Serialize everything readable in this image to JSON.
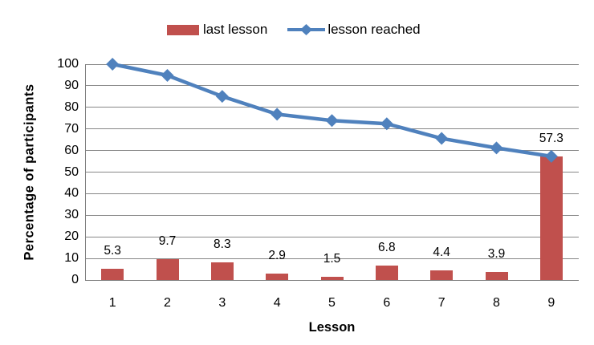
{
  "chart_data": {
    "type": "combo",
    "title": "",
    "xlabel": "Lesson",
    "ylabel": "Percentage of participants",
    "categories": [
      "1",
      "2",
      "3",
      "4",
      "5",
      "6",
      "7",
      "8",
      "9"
    ],
    "ylim": [
      0,
      100
    ],
    "yticks": [
      0,
      10,
      20,
      30,
      40,
      50,
      60,
      70,
      80,
      90,
      100
    ],
    "grid": true,
    "legend_position": "top",
    "axis_color": "#7f7f7f",
    "gridline_color": "#878787",
    "series": [
      {
        "name": "last lesson",
        "type": "bar",
        "color": "#C0504D",
        "values": [
          5.3,
          9.7,
          8.3,
          2.9,
          1.5,
          6.8,
          4.4,
          3.9,
          57.3
        ],
        "data_labels": [
          "5.3",
          "9.7",
          "8.3",
          "2.9",
          "1.5",
          "6.8",
          "4.4",
          "3.9",
          "57.3"
        ]
      },
      {
        "name": "lesson reached",
        "type": "line",
        "marker": "diamond",
        "color": "#4F81BD",
        "values": [
          100,
          94.8,
          85.1,
          76.8,
          73.9,
          72.4,
          65.6,
          61.2,
          57.3
        ]
      }
    ]
  }
}
